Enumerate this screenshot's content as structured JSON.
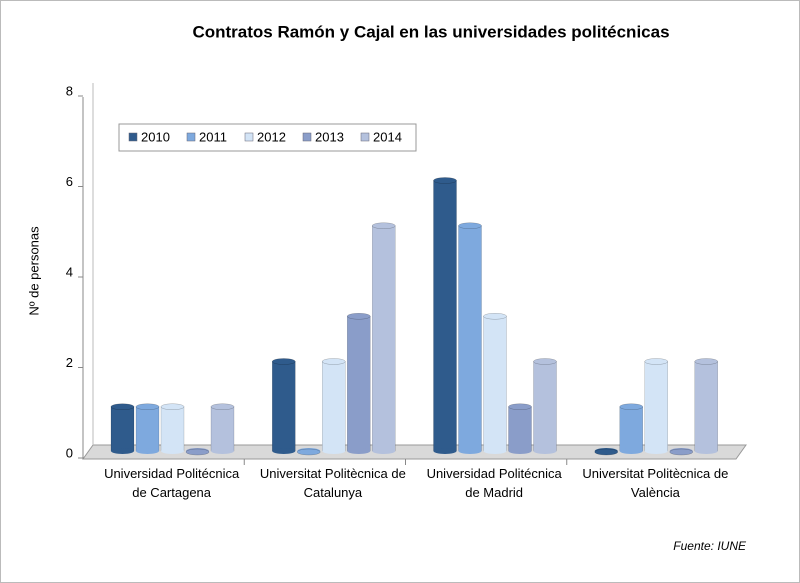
{
  "chart_data": {
    "type": "bar",
    "title": "Contratos  Ramón y Cajal  en las universidades  politécnicas",
    "y_label": "Nº de personas",
    "source": "Fuente: IUNE",
    "categories": [
      "Universidad Politécnica de Cartagena",
      "Universitat Politècnica de Catalunya",
      "Universidad Politécnica de Madrid",
      "Universitat Politècnica de València"
    ],
    "series": [
      {
        "name": "2010",
        "color": "#2f5b8c",
        "values": [
          1,
          2,
          6,
          0
        ]
      },
      {
        "name": "2011",
        "color": "#7ea9de",
        "values": [
          1,
          0,
          5,
          1
        ]
      },
      {
        "name": "2012",
        "color": "#d3e4f6",
        "values": [
          1,
          2,
          3,
          2
        ]
      },
      {
        "name": "2013",
        "color": "#8a9dc9",
        "values": [
          0,
          3,
          1,
          0
        ]
      },
      {
        "name": "2014",
        "color": "#b4c1dd",
        "values": [
          1,
          5,
          2,
          2
        ]
      }
    ],
    "ylim": [
      0,
      8
    ],
    "yticks": [
      0,
      2,
      4,
      6,
      8
    ],
    "legend": "top-left"
  }
}
